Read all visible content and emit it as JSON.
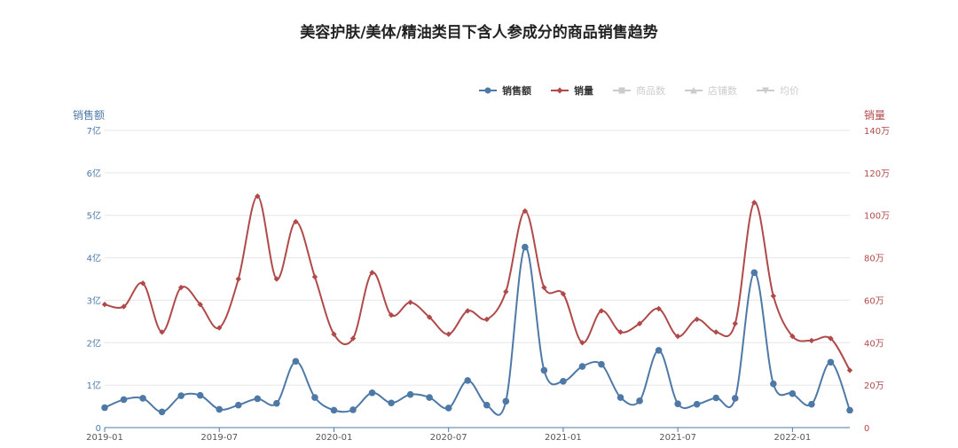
{
  "chart_data": {
    "type": "line",
    "title": "美容护肤/美体/精油类目下含人参成分的商品销售趋势",
    "x": [
      "2019-01",
      "2019-02",
      "2019-03",
      "2019-04",
      "2019-05",
      "2019-06",
      "2019-07",
      "2019-08",
      "2019-09",
      "2019-10",
      "2019-11",
      "2019-12",
      "2020-01",
      "2020-02",
      "2020-03",
      "2020-04",
      "2020-05",
      "2020-06",
      "2020-07",
      "2020-08",
      "2020-09",
      "2020-10",
      "2020-11",
      "2020-12",
      "2021-01",
      "2021-02",
      "2021-03",
      "2021-04",
      "2021-05",
      "2021-06",
      "2021-07",
      "2021-08",
      "2021-09",
      "2021-10",
      "2021-11",
      "2021-12",
      "2022-01",
      "2022-02",
      "2022-03",
      "2022-04"
    ],
    "x_ticks": [
      "2019-01",
      "2019-07",
      "2020-01",
      "2020-07",
      "2021-01",
      "2021-07",
      "2022-01"
    ],
    "y_left": {
      "label": "销售额",
      "ticks": [
        "0",
        "1亿",
        "2亿",
        "3亿",
        "4亿",
        "5亿",
        "6亿",
        "7亿"
      ],
      "ylim": [
        0,
        7
      ],
      "unit": "亿"
    },
    "y_right": {
      "label": "销量",
      "ticks": [
        "0",
        "20万",
        "40万",
        "60万",
        "80万",
        "100万",
        "120万",
        "140万"
      ],
      "ylim": [
        0,
        140
      ],
      "unit": "万"
    },
    "series": [
      {
        "name": "销售额",
        "axis": "left",
        "color": "#4e79a7",
        "marker": "circle",
        "active": true,
        "values": [
          0.47,
          0.66,
          0.69,
          0.37,
          0.75,
          0.76,
          0.43,
          0.53,
          0.68,
          0.57,
          1.56,
          0.71,
          0.41,
          0.42,
          0.82,
          0.58,
          0.78,
          0.71,
          0.46,
          1.11,
          0.53,
          0.62,
          4.25,
          1.35,
          1.09,
          1.44,
          1.49,
          0.71,
          0.63,
          1.82,
          0.56,
          0.55,
          0.7,
          0.69,
          3.65,
          1.03,
          0.8,
          0.55,
          1.54,
          0.41
        ]
      },
      {
        "name": "销量",
        "axis": "right",
        "color": "#b04a4a",
        "marker": "diamond",
        "active": true,
        "values": [
          58,
          57,
          68,
          45,
          66,
          58,
          47,
          70,
          109,
          70,
          97,
          71,
          44,
          42,
          73,
          53,
          59,
          52,
          44,
          55,
          51,
          64,
          102,
          66,
          63,
          40,
          55,
          45,
          49,
          56,
          43,
          51,
          45,
          49,
          106,
          62,
          43,
          41,
          42,
          27
        ]
      },
      {
        "name": "商品数",
        "color": "#cccccc",
        "marker": "square",
        "active": false
      },
      {
        "name": "店铺数",
        "color": "#cccccc",
        "marker": "triangle",
        "active": false
      },
      {
        "name": "均价",
        "color": "#cccccc",
        "marker": "triangle-down",
        "active": false
      }
    ],
    "grid": true,
    "legend_position": "top-right"
  }
}
